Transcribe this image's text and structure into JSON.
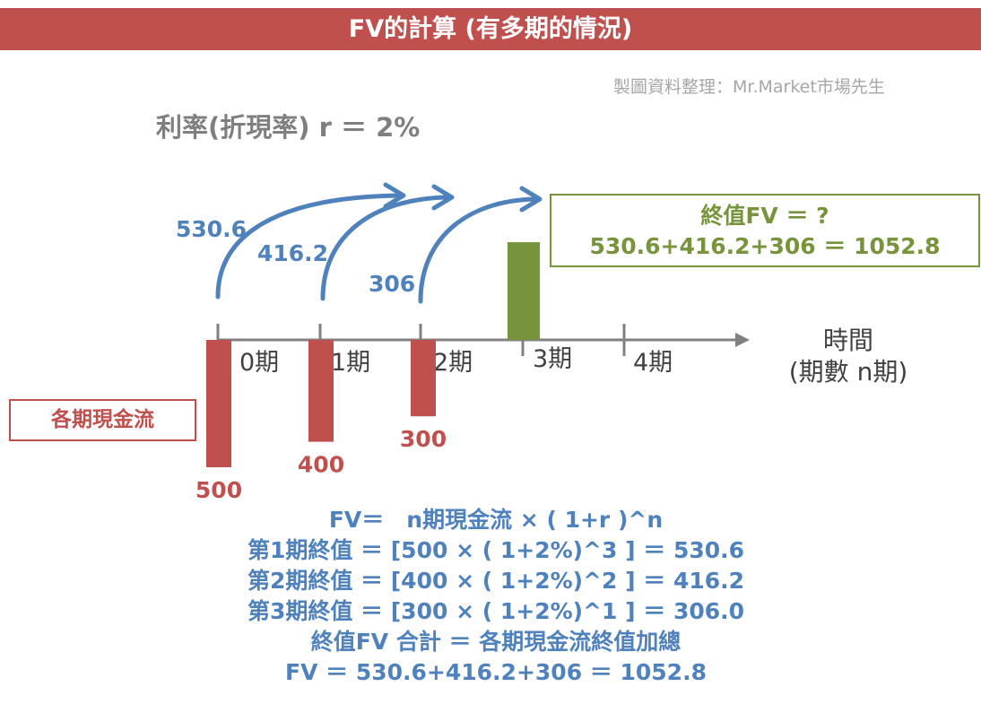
{
  "title": "FV的計算 (有多期的情況)",
  "credit": "製圖資料整理：Mr.Market市場先生",
  "rate_label": "利率(折現率) r ＝ 2%",
  "fv_box": {
    "line1": "終值FV ＝ ?",
    "line2": "530.6+416.2+306 ＝ 1052.8"
  },
  "cash_flow_label": "各期現金流",
  "time_axis": {
    "line1": "時間",
    "line2": "(期數 n期)"
  },
  "periods": [
    "0期",
    "1期",
    "2期",
    "3期",
    "4期"
  ],
  "cash_flows": [
    {
      "period": "0期",
      "value": 500,
      "label": "500"
    },
    {
      "period": "1期",
      "value": 400,
      "label": "400"
    },
    {
      "period": "2期",
      "value": 300,
      "label": "300"
    }
  ],
  "future_values": [
    {
      "from": "0期",
      "to": "3期",
      "value": 530.6,
      "label": "530.6"
    },
    {
      "from": "1期",
      "to": "3期",
      "value": 416.2,
      "label": "416.2"
    },
    {
      "from": "2期",
      "to": "3期",
      "value": 306.0,
      "label": "306"
    }
  ],
  "total_fv": {
    "period": "3期",
    "value": 1052.8
  },
  "formulas": [
    "FV＝　n期現金流 × ( 1+r )^n",
    "第1期終值 ＝ [500 × ( 1+2%)^3 ] ＝ 530.6",
    "第2期終值 ＝ [400 × ( 1+2%)^2 ] ＝ 416.2",
    "第3期終值 ＝ [300 × ( 1+2%)^1 ] ＝ 306.0",
    "終值FV 合計 ＝ 各期現金流終值加總",
    "FV ＝ 530.6+416.2+306 ＝ 1052.8"
  ],
  "colors": {
    "banner": "#c0504d",
    "cash_flow_bar": "#c0504d",
    "fv_bar": "#77933c",
    "arrow": "#4f81bd",
    "axis": "#808080"
  }
}
